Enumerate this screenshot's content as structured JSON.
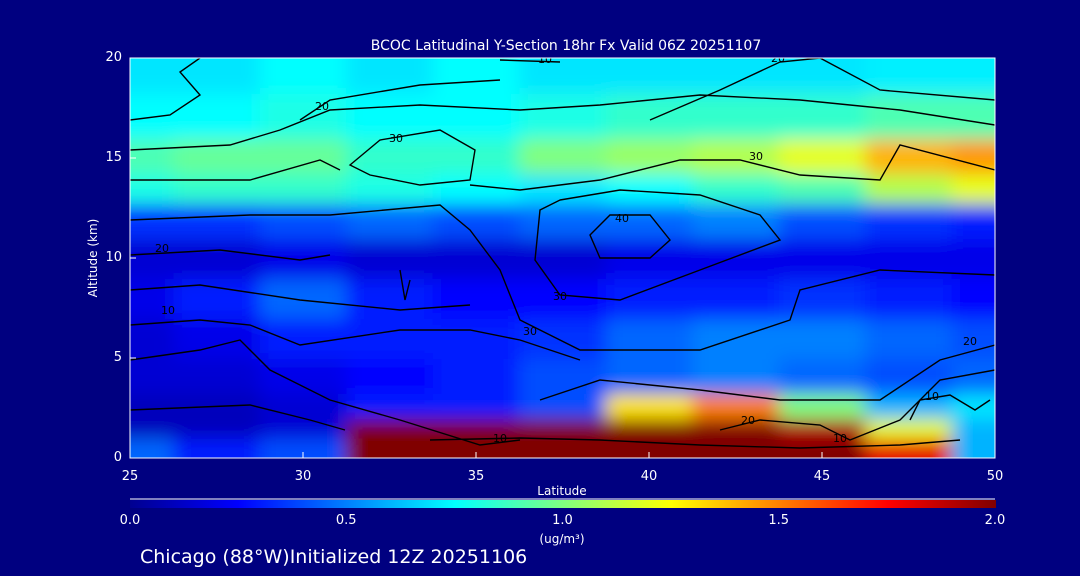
{
  "chart_data": {
    "type": "heatmap",
    "title": "BCOC Latitudinal Y-Section 18hr  Fx Valid 06Z 20251107",
    "xlabel": "Latitude",
    "ylabel": "Altitude (km)",
    "xlim": [
      25,
      50
    ],
    "ylim": [
      0,
      20
    ],
    "xticks": [
      "25",
      "30",
      "35",
      "40",
      "45",
      "50"
    ],
    "yticks": [
      "0",
      "5",
      "10",
      "15",
      "20"
    ],
    "colorbar": {
      "label": "(ug/m³)",
      "range": [
        0.0,
        2.0
      ],
      "ticks": [
        "0.0",
        "0.5",
        "1.0",
        "1.5",
        "2.0"
      ],
      "colors": [
        "#000090",
        "#0000ff",
        "#0080ff",
        "#00ffff",
        "#80ff80",
        "#ffff00",
        "#ff8000",
        "#ff0000",
        "#800000"
      ]
    },
    "grid_lat": [
      25,
      27.5,
      30,
      32.5,
      35,
      37.5,
      40,
      42.5,
      45,
      47.5,
      50
    ],
    "grid_alt": [
      0.5,
      1.5,
      2.5,
      4,
      6,
      8,
      10,
      12,
      13.5,
      15,
      17,
      19.5
    ],
    "values": [
      [
        0.45,
        0.3,
        0.4,
        2,
        2,
        2,
        2,
        2,
        2,
        1.8,
        0.6
      ],
      [
        0.1,
        0.1,
        0.15,
        2,
        2,
        2,
        2,
        2,
        1.9,
        1.2,
        0.6
      ],
      [
        0.1,
        0.1,
        0.15,
        0.3,
        0.3,
        0.4,
        1.3,
        1.5,
        1.0,
        0.6,
        0.7
      ],
      [
        0.15,
        0.15,
        0.2,
        0.25,
        0.3,
        0.4,
        0.45,
        0.5,
        0.45,
        0.4,
        0.45
      ],
      [
        0.15,
        0.2,
        0.3,
        0.3,
        0.3,
        0.35,
        0.45,
        0.5,
        0.5,
        0.45,
        0.4
      ],
      [
        0.2,
        0.3,
        0.45,
        0.3,
        0.25,
        0.25,
        0.3,
        0.3,
        0.35,
        0.3,
        0.25
      ],
      [
        0.15,
        0.15,
        0.2,
        0.15,
        0.15,
        0.15,
        0.2,
        0.2,
        0.2,
        0.2,
        0.2
      ],
      [
        0.35,
        0.35,
        0.4,
        0.45,
        0.4,
        0.45,
        0.45,
        0.5,
        0.4,
        0.35,
        0.3
      ],
      [
        0.8,
        0.85,
        0.85,
        0.8,
        0.75,
        0.7,
        0.75,
        0.85,
        0.9,
        1.1,
        1.2
      ],
      [
        0.9,
        0.95,
        0.95,
        0.85,
        0.85,
        1.0,
        1.05,
        1.1,
        1.2,
        1.4,
        1.45
      ],
      [
        0.75,
        0.75,
        0.8,
        0.75,
        0.75,
        0.8,
        0.85,
        0.85,
        0.85,
        0.9,
        0.9
      ],
      [
        0.7,
        0.7,
        0.75,
        0.7,
        0.75,
        0.7,
        0.7,
        0.7,
        0.7,
        0.72,
        0.72
      ]
    ],
    "contour_labels": [
      "10",
      "20",
      "20",
      "30",
      "30",
      "40",
      "10",
      "30",
      "20",
      "10",
      "10",
      "20",
      "30",
      "20",
      "10"
    ]
  },
  "footer": "Chicago (88°W)Initialized 12Z 20251106"
}
